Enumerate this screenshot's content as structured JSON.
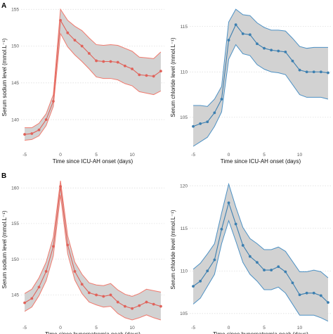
{
  "figure": {
    "panel_labels": [
      "A",
      "B"
    ]
  },
  "colors": {
    "sodium_line": "#e0625a",
    "sodium_band_edge": "#f07a6e",
    "chloride_line": "#3c7fb0",
    "chloride_band_edge": "#4d91c4",
    "band_fill": "#d2d2d2",
    "grid": "#d9d9d9"
  },
  "chart_data": [
    {
      "id": "A-sodium",
      "panel": "A",
      "type": "line",
      "xlabel": "Time since ICU-AH onset (days)",
      "ylabel": "Serum sodium level (mmol.L⁻¹)",
      "xlim": [
        -5.5,
        14.5
      ],
      "ylim": [
        136,
        155.5
      ],
      "xticks": [
        -5,
        0,
        5,
        10
      ],
      "yticks": [
        140,
        145,
        150,
        155
      ],
      "grid": "horizontal dotted",
      "series": [
        {
          "x": [
            -5,
            -4,
            -3,
            -2,
            -1,
            0,
            1,
            2,
            3,
            4,
            5,
            6,
            7,
            8,
            9,
            10,
            11,
            12,
            13,
            14
          ],
          "y": [
            138,
            138.1,
            138.6,
            140,
            142.5,
            153.5,
            151.8,
            150.8,
            150,
            149,
            148,
            147.9,
            147.9,
            147.8,
            147.3,
            146.9,
            146.1,
            146.0,
            145.9,
            146.6
          ],
          "lower": [
            137.2,
            137.3,
            137.8,
            139.2,
            141.8,
            151.7,
            149.9,
            148.8,
            147.9,
            146.9,
            145.8,
            145.6,
            145.6,
            145.4,
            144.9,
            144.6,
            143.8,
            143.6,
            143.4,
            143.9
          ],
          "upper": [
            138.9,
            138.9,
            139.5,
            140.8,
            143.4,
            155.0,
            153.5,
            152.7,
            152.1,
            151.1,
            150.2,
            150.1,
            150.2,
            150.1,
            149.7,
            149.3,
            148.5,
            148.4,
            148.3,
            149.2
          ]
        }
      ]
    },
    {
      "id": "A-chloride",
      "panel": "A",
      "type": "line",
      "xlabel": "Time since ICU-AH onset (days)",
      "ylabel": "Serum chloride level (mmol.L⁻¹)",
      "xlim": [
        -5.5,
        14.5
      ],
      "ylim": [
        101.5,
        117.3
      ],
      "xticks": [
        -5,
        0,
        5,
        10
      ],
      "yticks": [
        105,
        110,
        115
      ],
      "grid": "horizontal dotted",
      "series": [
        {
          "x": [
            -5,
            -4,
            -3,
            -2,
            -1,
            0,
            1,
            2,
            3,
            4,
            5,
            6,
            7,
            8,
            9,
            10,
            11,
            12,
            13,
            14
          ],
          "y": [
            104,
            104.3,
            104.5,
            105.5,
            107,
            113.5,
            115.2,
            114.2,
            114.1,
            113.1,
            112.6,
            112.4,
            112.3,
            112.2,
            111.2,
            110.2,
            110.0,
            110.0,
            110.0,
            109.9
          ],
          "lower": [
            101.8,
            102.3,
            102.8,
            104.0,
            105.6,
            111.4,
            113.0,
            112.0,
            111.8,
            110.8,
            110.3,
            110.0,
            109.9,
            109.7,
            108.6,
            107.5,
            107.2,
            107.2,
            107.2,
            107.0
          ],
          "upper": [
            106.3,
            106.3,
            106.2,
            107.0,
            108.4,
            115.5,
            116.9,
            116.3,
            116.2,
            115.4,
            114.9,
            114.6,
            114.6,
            114.5,
            113.7,
            112.8,
            112.6,
            112.7,
            112.7,
            112.7
          ]
        }
      ]
    },
    {
      "id": "B-sodium",
      "panel": "B",
      "type": "line",
      "xlabel": "Time since hypernatremia peak (days)",
      "ylabel": "Serum sodium level (mmol.L⁻¹)",
      "xlim": [
        -5.5,
        14.5
      ],
      "ylim": [
        141.2,
        161.5
      ],
      "xticks": [
        -5,
        0,
        5,
        10
      ],
      "yticks": [
        145,
        150,
        155,
        160
      ],
      "grid": "horizontal dotted",
      "series": [
        {
          "x": [
            -5,
            -4,
            -3,
            -2,
            -1,
            0,
            1,
            2,
            3,
            4,
            5,
            6,
            7,
            8,
            9,
            10,
            11,
            12,
            13,
            14
          ],
          "y": [
            143.9,
            144.5,
            146.1,
            148.3,
            151.8,
            160.2,
            152,
            148.3,
            146.5,
            145.3,
            145,
            144.8,
            145,
            144,
            143.4,
            143.1,
            143.5,
            144.0,
            143.7,
            143.4
          ],
          "lower": [
            142.7,
            143.3,
            144.9,
            147.0,
            150.5,
            159.0,
            150.8,
            147.1,
            145.2,
            144.0,
            143.6,
            143.3,
            143.4,
            142.4,
            141.8,
            141.5,
            141.8,
            142.2,
            141.8,
            141.5
          ],
          "upper": [
            145.2,
            145.8,
            147.4,
            149.6,
            153.1,
            161.0,
            153.3,
            149.6,
            147.9,
            146.7,
            146.4,
            146.3,
            146.6,
            145.7,
            145.1,
            144.8,
            145.2,
            145.8,
            145.6,
            145.4
          ]
        }
      ]
    },
    {
      "id": "B-chloride",
      "panel": "B",
      "type": "line",
      "xlabel": "Time since hypernatremia peak (days)",
      "ylabel": "Serum chloride level (mmol.L⁻¹)",
      "xlim": [
        -5.5,
        14.5
      ],
      "ylim": [
        104,
        121
      ],
      "xticks": [
        -5,
        0,
        5,
        10
      ],
      "yticks": [
        105,
        110,
        115,
        120
      ],
      "grid": "horizontal dotted",
      "series": [
        {
          "x": [
            -5,
            -4,
            -3,
            -2,
            -1,
            0,
            1,
            2,
            3,
            4,
            5,
            6,
            7,
            8,
            9,
            10,
            11,
            12,
            13,
            14
          ],
          "y": [
            108.2,
            108.8,
            110,
            111.3,
            114.9,
            118,
            115.5,
            113,
            111.7,
            111,
            110.1,
            110.1,
            110.5,
            109.9,
            108.6,
            107.2,
            107.4,
            107.4,
            107.1,
            106.3
          ],
          "lower": [
            106.1,
            106.8,
            108.2,
            109.6,
            113.2,
            115.9,
            113.5,
            111.0,
            109.6,
            108.8,
            107.8,
            107.8,
            108.1,
            107.4,
            106.1,
            104.8,
            104.8,
            104.8,
            104.5,
            104.1
          ],
          "upper": [
            110.2,
            110.9,
            112.0,
            113.2,
            116.8,
            120.2,
            117.5,
            115.1,
            113.8,
            113.2,
            112.5,
            112.5,
            112.8,
            112.3,
            111.1,
            109.9,
            109.9,
            110.1,
            109.9,
            109.2
          ]
        }
      ]
    }
  ]
}
